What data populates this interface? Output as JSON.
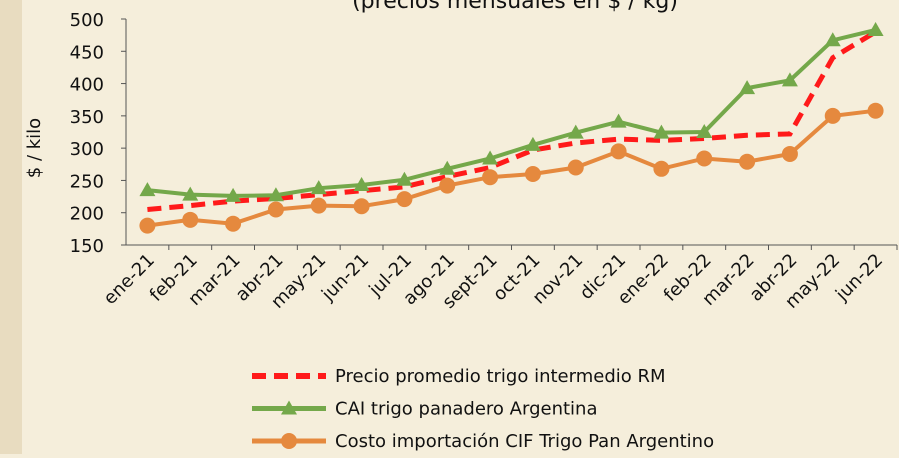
{
  "chart_data": {
    "type": "line",
    "title": "(precios mensuales en $ / kg)",
    "y_label": "$ / kilo",
    "categories": [
      "ene-21",
      "feb-21",
      "mar-21",
      "abr-21",
      "may-21",
      "jun-21",
      "jul-21",
      "ago-21",
      "sept-21",
      "oct-21",
      "nov-21",
      "dic-21",
      "ene-22",
      "feb-22",
      "mar-22",
      "abr-22",
      "may-22",
      "jun-22"
    ],
    "series": [
      {
        "name": "Precio promedio trigo intermedio RM",
        "color": "#ff1a1a",
        "style": "dashed",
        "marker": "none",
        "values": [
          205,
          211,
          218,
          222,
          228,
          234,
          240,
          256,
          270,
          297,
          308,
          314,
          312,
          315,
          320,
          322,
          440,
          480
        ]
      },
      {
        "name": "CAI trigo panadero Argentina",
        "color": "#74a84a",
        "style": "solid",
        "marker": "triangle",
        "values": [
          235,
          228,
          226,
          227,
          238,
          243,
          251,
          268,
          284,
          305,
          324,
          341,
          324,
          325,
          393,
          405,
          467,
          483
        ]
      },
      {
        "name": "Costo importación CIF Trigo Pan Argentino",
        "color": "#e5893e",
        "style": "solid",
        "marker": "circle",
        "values": [
          180,
          189,
          183,
          205,
          211,
          210,
          221,
          242,
          255,
          260,
          270,
          295,
          268,
          284,
          279,
          291,
          350,
          358
        ]
      }
    ],
    "ylim": [
      150,
      500
    ],
    "yticks": [
      150,
      200,
      250,
      300,
      350,
      400,
      450,
      500
    ],
    "grid": false
  }
}
